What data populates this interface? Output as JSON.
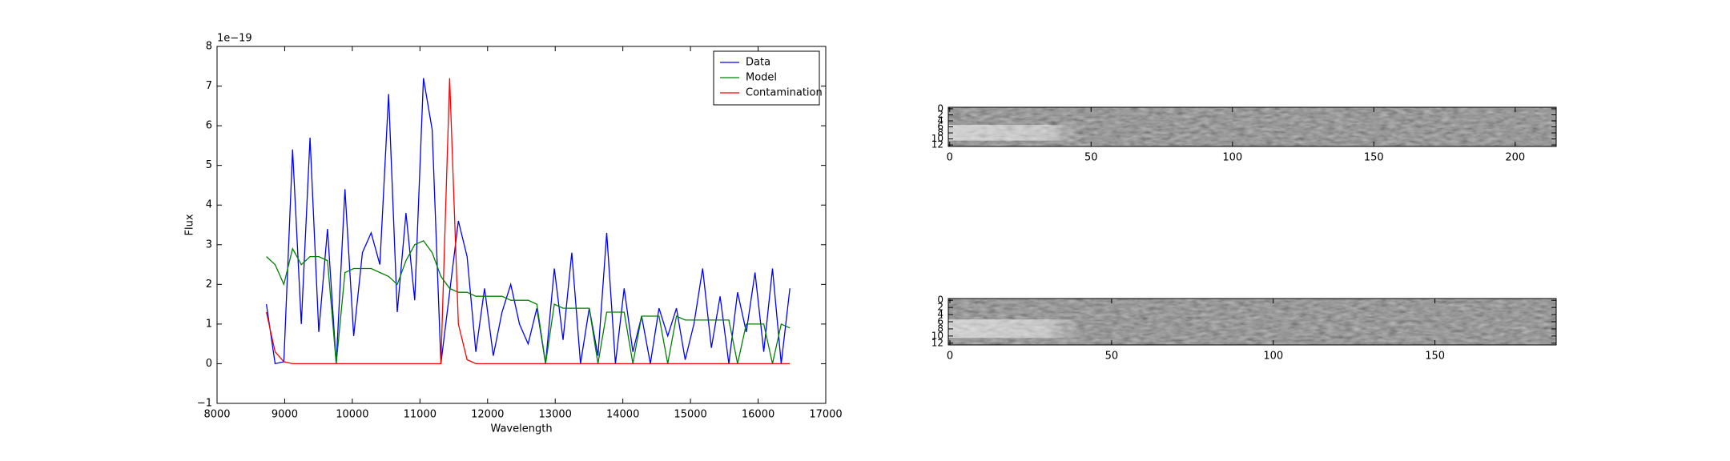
{
  "chart_data": [
    {
      "type": "line",
      "offset_label": "1e−19",
      "xlabel": "Wavelength",
      "ylabel": "Flux",
      "x": [
        8730,
        8859,
        8988,
        9117,
        9246,
        9375,
        9504,
        9633,
        9762,
        9891,
        10020,
        10149,
        10278,
        10407,
        10536,
        10665,
        10794,
        10923,
        11052,
        11181,
        11310,
        11439,
        11568,
        11697,
        11826,
        11955,
        12084,
        12213,
        12342,
        12471,
        12600,
        12729,
        12858,
        12987,
        13116,
        13245,
        13374,
        13503,
        13632,
        13761,
        13890,
        14019,
        14148,
        14277,
        14406,
        14535,
        14664,
        14793,
        14922,
        15051,
        15180,
        15309,
        15438,
        15567,
        15696,
        15825,
        15954,
        16083,
        16212,
        16341,
        16470
      ],
      "series": [
        {
          "name": "Data",
          "color": "#0000ff",
          "values": [
            1.5,
            0,
            0.05,
            5.4,
            1.0,
            5.7,
            0.8,
            3.4,
            0,
            4.4,
            0.7,
            2.8,
            3.3,
            2.5,
            6.8,
            1.3,
            3.8,
            1.6,
            7.2,
            5.9,
            0,
            1.8,
            3.6,
            2.7,
            0.3,
            1.9,
            0.2,
            1.3,
            2.0,
            1.0,
            0.5,
            1.4,
            0,
            2.4,
            0.6,
            2.8,
            0,
            1.4,
            0.2,
            3.3,
            0,
            1.9,
            0.3,
            1.2,
            0,
            1.4,
            0.7,
            1.4,
            0.1,
            1.0,
            2.4,
            0.4,
            1.7,
            0,
            1.8,
            0.8,
            2.3,
            0.3,
            2.4,
            0,
            1.9
          ]
        },
        {
          "name": "Model",
          "color": "#008000",
          "values": [
            2.7,
            2.5,
            2.0,
            2.9,
            2.5,
            2.7,
            2.7,
            2.6,
            0,
            2.3,
            2.4,
            2.4,
            2.4,
            2.3,
            2.2,
            2.0,
            2.6,
            3.0,
            3.1,
            2.8,
            2.2,
            1.9,
            1.8,
            1.8,
            1.7,
            1.7,
            1.7,
            1.7,
            1.6,
            1.6,
            1.6,
            1.5,
            0,
            1.5,
            1.4,
            1.4,
            1.4,
            1.4,
            0,
            1.3,
            1.3,
            1.3,
            0,
            1.2,
            1.2,
            1.2,
            0,
            1.2,
            1.1,
            1.1,
            1.1,
            1.1,
            1.1,
            1.1,
            0,
            1.0,
            1.0,
            1.0,
            0,
            1.0,
            0.9
          ]
        },
        {
          "name": "Contamination",
          "color": "#ff0000",
          "values": [
            1.3,
            0.3,
            0.05,
            0,
            0,
            0,
            0,
            0,
            0,
            0,
            0,
            0,
            0,
            0,
            0,
            0,
            0,
            0,
            0,
            0,
            0,
            7.2,
            1.0,
            0.1,
            0,
            0,
            0,
            0,
            0,
            0,
            0,
            0,
            0,
            0,
            0,
            0,
            0,
            0,
            0,
            0,
            0,
            0,
            0,
            0,
            0,
            0,
            0,
            0,
            0,
            0,
            0,
            0,
            0,
            0,
            0,
            0,
            0,
            0,
            0,
            0,
            0
          ]
        }
      ],
      "xlim": [
        8000,
        17000
      ],
      "xticks": [
        8000,
        9000,
        10000,
        11000,
        12000,
        13000,
        14000,
        15000,
        16000,
        17000
      ],
      "ylim": [
        -1,
        8
      ],
      "yticks": [
        {
          "value": -1,
          "label": "−1"
        },
        0,
        1,
        2,
        3,
        4,
        5,
        6,
        7,
        8
      ],
      "legend": "upper right"
    },
    {
      "type": "image",
      "xlim": [
        -0.5,
        214.5
      ],
      "xticks": [
        0,
        50,
        100,
        150,
        200
      ],
      "ylim": [
        12.5,
        -0.5
      ],
      "yticks": [
        0,
        2,
        4,
        6,
        8,
        10,
        12
      ]
    },
    {
      "type": "image",
      "xlim": [
        -0.5,
        187.5
      ],
      "xticks": [
        0,
        50,
        100,
        150
      ],
      "ylim": [
        12.5,
        -0.5
      ],
      "yticks": [
        0,
        2,
        4,
        6,
        8,
        10,
        12
      ]
    }
  ]
}
